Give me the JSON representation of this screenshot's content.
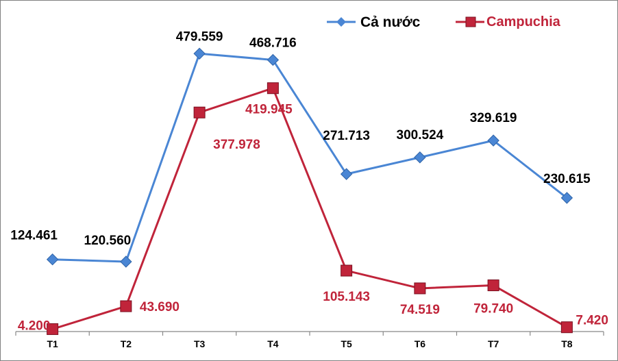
{
  "chart_data": {
    "type": "line",
    "title": "",
    "xlabel": "",
    "ylabel": "",
    "categories": [
      "T1",
      "T2",
      "T3",
      "T4",
      "T5",
      "T6",
      "T7",
      "T8"
    ],
    "ylim": [
      0,
      500
    ],
    "grid": false,
    "legend_position": "top-right",
    "series": [
      {
        "name": "Cả nước",
        "color": "#4a86d4",
        "marker": "diamond",
        "values": [
          124.461,
          120.56,
          479.559,
          468.716,
          271.713,
          300.524,
          329.619,
          230.615
        ],
        "labels": [
          "124.461",
          "120.560",
          "479.559",
          "468.716",
          "271.713",
          "300.524",
          "329.619",
          "230.615"
        ]
      },
      {
        "name": "Campuchia",
        "color": "#c0243a",
        "marker": "square",
        "values": [
          4.2,
          43.69,
          377.978,
          419.945,
          105.143,
          74.519,
          79.74,
          7.42
        ],
        "labels": [
          "4.200",
          "43.690",
          "377.978",
          "419.945",
          "105.143",
          "74.519",
          "79.740",
          "7.420"
        ]
      }
    ]
  }
}
